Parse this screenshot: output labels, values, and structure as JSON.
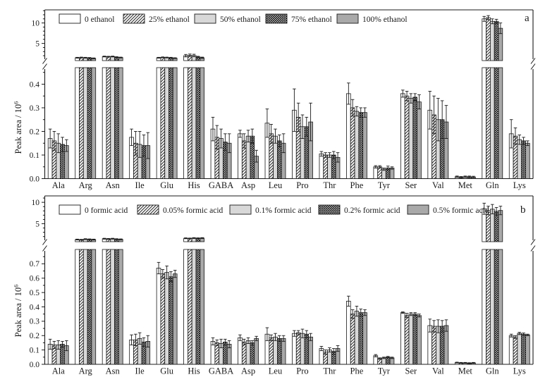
{
  "figure": {
    "background": "#ffffff",
    "panel_count": 2
  },
  "colors": {
    "ink": "#1a1a1a",
    "white": "#ffffff",
    "light_gray": "#d8d8d8",
    "mid_gray": "#a9a9a9"
  },
  "chart_data": [
    {
      "type": "bar",
      "panel_label": "a",
      "ylabel_base": "Peak area / 10",
      "ylabel_exp": "6",
      "grid": false,
      "axis_break": true,
      "legend_position": "top-left-inside",
      "lower_axis": {
        "range": [
          0,
          0.47
        ],
        "ticks": [
          {
            "v": 0.0,
            "label": "0.0"
          },
          {
            "v": 0.1,
            "label": "0.1"
          },
          {
            "v": 0.2,
            "label": "0.2"
          },
          {
            "v": 0.3,
            "label": "0.3"
          },
          {
            "v": 0.4,
            "label": "0.4"
          }
        ],
        "minor_values": [
          0.05,
          0.15,
          0.25,
          0.35,
          0.45
        ]
      },
      "upper_axis": {
        "range": [
          0.8,
          13.2
        ],
        "ticks": [
          {
            "v": 5,
            "label": "5"
          },
          {
            "v": 10,
            "label": "10"
          }
        ],
        "minor_values": [
          2,
          3,
          4,
          6,
          7,
          8,
          9,
          11,
          12,
          13
        ]
      },
      "categories": [
        "Ala",
        "Arg",
        "Asn",
        "Ile",
        "Glu",
        "His",
        "GABA",
        "Asp",
        "Leu",
        "Pro",
        "Thr",
        "Phe",
        "Tyr",
        "Ser",
        "Val",
        "Met",
        "Gln",
        "Lys"
      ],
      "series": [
        {
          "name": "0 ethanol",
          "fill": "white",
          "values": [
            0.17,
            1.5,
            1.8,
            0.175,
            1.5,
            2.0,
            0.21,
            0.19,
            0.235,
            0.29,
            0.105,
            0.36,
            0.05,
            0.36,
            0.29,
            0.008,
            11.0,
            0.19
          ],
          "errors": [
            0.04,
            0.1,
            0.1,
            0.035,
            0.1,
            0.3,
            0.05,
            0.015,
            0.06,
            0.09,
            0.01,
            0.045,
            0.005,
            0.015,
            0.08,
            0.003,
            0.6,
            0.06
          ]
        },
        {
          "name": "25% ethanol",
          "fill": "hatch",
          "values": [
            0.16,
            1.55,
            1.75,
            0.15,
            1.6,
            2.1,
            0.175,
            0.16,
            0.19,
            0.26,
            0.1,
            0.3,
            0.05,
            0.35,
            0.27,
            0.006,
            11.3,
            0.18
          ],
          "errors": [
            0.04,
            0.1,
            0.1,
            0.05,
            0.1,
            0.3,
            0.05,
            0.03,
            0.04,
            0.06,
            0.01,
            0.035,
            0.005,
            0.02,
            0.08,
            0.003,
            0.5,
            0.035
          ]
        },
        {
          "name": "50% ethanol",
          "fill": "lightgray",
          "values": [
            0.15,
            1.5,
            1.8,
            0.145,
            1.55,
            2.05,
            0.17,
            0.18,
            0.18,
            0.22,
            0.1,
            0.285,
            0.04,
            0.34,
            0.25,
            0.008,
            10.4,
            0.165
          ],
          "errors": [
            0.04,
            0.1,
            0.1,
            0.055,
            0.1,
            0.3,
            0.04,
            0.025,
            0.03,
            0.05,
            0.01,
            0.02,
            0.005,
            0.02,
            0.09,
            0.003,
            0.6,
            0.02
          ]
        },
        {
          "name": "75% ethanol",
          "fill": "check",
          "values": [
            0.145,
            1.45,
            1.65,
            0.14,
            1.5,
            1.7,
            0.155,
            0.18,
            0.16,
            0.22,
            0.1,
            0.28,
            0.045,
            0.345,
            0.25,
            0.008,
            10.4,
            0.16
          ],
          "errors": [
            0.03,
            0.1,
            0.1,
            0.045,
            0.1,
            0.15,
            0.035,
            0.03,
            0.025,
            0.04,
            0.015,
            0.02,
            0.008,
            0.015,
            0.08,
            0.003,
            0.5,
            0.015
          ]
        },
        {
          "name": "100% ethanol",
          "fill": "gray",
          "values": [
            0.14,
            1.35,
            1.55,
            0.14,
            1.4,
            1.5,
            0.15,
            0.095,
            0.15,
            0.24,
            0.09,
            0.28,
            0.045,
            0.325,
            0.24,
            0.007,
            8.7,
            0.15
          ],
          "errors": [
            0.025,
            0.1,
            0.1,
            0.055,
            0.1,
            0.15,
            0.04,
            0.025,
            0.04,
            0.08,
            0.02,
            0.02,
            0.005,
            0.03,
            0.07,
            0.003,
            1.3,
            0.01
          ]
        }
      ]
    },
    {
      "type": "bar",
      "panel_label": "b",
      "ylabel_base": "Peak area / 10",
      "ylabel_exp": "6",
      "grid": false,
      "axis_break": true,
      "legend_position": "top-left-inside",
      "lower_axis": {
        "range": [
          0,
          0.8
        ],
        "ticks": [
          {
            "v": 0.0,
            "label": "0.0"
          },
          {
            "v": 0.1,
            "label": "0.1"
          },
          {
            "v": 0.2,
            "label": "0.2"
          },
          {
            "v": 0.3,
            "label": "0.3"
          },
          {
            "v": 0.4,
            "label": "0.4"
          },
          {
            "v": 0.5,
            "label": "0.5"
          },
          {
            "v": 0.6,
            "label": "0.6"
          },
          {
            "v": 0.7,
            "label": "0.7"
          }
        ],
        "minor_values": [
          0.05,
          0.15,
          0.25,
          0.35,
          0.45,
          0.55,
          0.65,
          0.75
        ]
      },
      "upper_axis": {
        "range": [
          0.8,
          11.5
        ],
        "ticks": [
          {
            "v": 5,
            "label": "5"
          },
          {
            "v": 10,
            "label": "10"
          }
        ],
        "minor_values": [
          2,
          3,
          4,
          6,
          7,
          8,
          9,
          11
        ]
      },
      "categories": [
        "Ala",
        "Arg",
        "Asn",
        "Ile",
        "Glu",
        "His",
        "GABA",
        "Asp",
        "Leu",
        "Pro",
        "Thr",
        "Phe",
        "Tyr",
        "Ser",
        "Val",
        "Met",
        "Gln",
        "Lys"
      ],
      "series": [
        {
          "name": "0 formic acid",
          "fill": "white",
          "values": [
            0.14,
            1.3,
            1.5,
            0.17,
            0.67,
            1.6,
            0.16,
            0.185,
            0.21,
            0.215,
            0.11,
            0.44,
            0.06,
            0.36,
            0.27,
            0.012,
            8.5,
            0.2
          ],
          "errors": [
            0.035,
            0.1,
            0.1,
            0.035,
            0.04,
            0.1,
            0.025,
            0.02,
            0.045,
            0.02,
            0.015,
            0.035,
            0.008,
            0.005,
            0.045,
            0.003,
            1.3,
            0.01
          ]
        },
        {
          "name": "0.05% formic acid",
          "fill": "hatch",
          "values": [
            0.135,
            1.25,
            1.45,
            0.17,
            0.63,
            1.55,
            0.15,
            0.155,
            0.185,
            0.22,
            0.085,
            0.35,
            0.04,
            0.34,
            0.265,
            0.01,
            8.1,
            0.19
          ],
          "errors": [
            0.025,
            0.1,
            0.1,
            0.04,
            0.03,
            0.1,
            0.02,
            0.02,
            0.02,
            0.015,
            0.015,
            0.03,
            0.005,
            0.015,
            0.04,
            0.003,
            1.0,
            0.01
          ]
        },
        {
          "name": "0.1% formic acid",
          "fill": "lightgray",
          "values": [
            0.135,
            1.4,
            1.5,
            0.18,
            0.64,
            1.65,
            0.145,
            0.165,
            0.19,
            0.215,
            0.1,
            0.37,
            0.045,
            0.35,
            0.265,
            0.01,
            8.4,
            0.215
          ],
          "errors": [
            0.03,
            0.1,
            0.1,
            0.04,
            0.045,
            0.1,
            0.03,
            0.02,
            0.025,
            0.03,
            0.015,
            0.035,
            0.005,
            0.01,
            0.045,
            0.003,
            1.1,
            0.008
          ]
        },
        {
          "name": "0.2% formic acid",
          "fill": "check",
          "values": [
            0.14,
            1.35,
            1.4,
            0.155,
            0.61,
            1.6,
            0.155,
            0.15,
            0.18,
            0.21,
            0.09,
            0.36,
            0.05,
            0.35,
            0.265,
            0.008,
            7.9,
            0.21
          ],
          "errors": [
            0.02,
            0.1,
            0.1,
            0.03,
            0.035,
            0.1,
            0.02,
            0.015,
            0.02,
            0.025,
            0.02,
            0.025,
            0.005,
            0.01,
            0.04,
            0.003,
            0.9,
            0.008
          ]
        },
        {
          "name": "0.5% formic acid",
          "fill": "gray",
          "values": [
            0.13,
            1.3,
            1.35,
            0.16,
            0.63,
            1.65,
            0.14,
            0.18,
            0.18,
            0.19,
            0.11,
            0.36,
            0.045,
            0.34,
            0.27,
            0.01,
            8.1,
            0.205
          ],
          "errors": [
            0.035,
            0.1,
            0.1,
            0.04,
            0.025,
            0.1,
            0.025,
            0.015,
            0.02,
            0.025,
            0.02,
            0.02,
            0.005,
            0.01,
            0.04,
            0.003,
            1.0,
            0.005
          ]
        }
      ]
    }
  ]
}
